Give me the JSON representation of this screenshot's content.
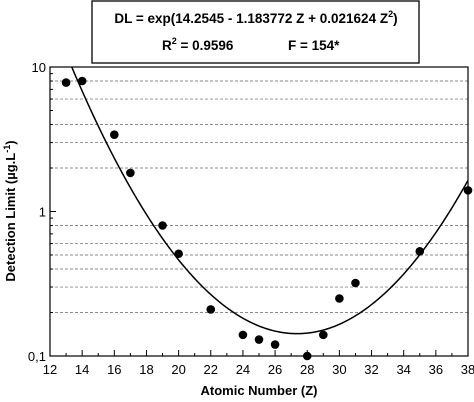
{
  "chart_data": {
    "type": "scatter",
    "xlabel": "Atomic Number (Z)",
    "ylabel_main": "Detection Limit (µg.L",
    "ylabel_sup": "-1",
    "ylabel_end": ")",
    "xlim": [
      12,
      38
    ],
    "ylim": [
      0.1,
      10
    ],
    "y_scale": "log",
    "x_ticks": [
      "12",
      "14",
      "16",
      "18",
      "20",
      "22",
      "24",
      "26",
      "28",
      "30",
      "32",
      "34",
      "36",
      "38"
    ],
    "y_ticks": [
      {
        "value": 0.1,
        "label": "0,1"
      },
      {
        "value": 1,
        "label": "1"
      },
      {
        "value": 10,
        "label": "10"
      }
    ],
    "grid": "horizontal dashed (minor log ticks)",
    "points": [
      {
        "x": 13,
        "y": 7.8
      },
      {
        "x": 14,
        "y": 8.0
      },
      {
        "x": 16,
        "y": 3.4
      },
      {
        "x": 17,
        "y": 1.85
      },
      {
        "x": 19,
        "y": 0.8
      },
      {
        "x": 20,
        "y": 0.51
      },
      {
        "x": 22,
        "y": 0.21
      },
      {
        "x": 24,
        "y": 0.14
      },
      {
        "x": 25,
        "y": 0.13
      },
      {
        "x": 26,
        "y": 0.12
      },
      {
        "x": 28,
        "y": 0.1
      },
      {
        "x": 29,
        "y": 0.14
      },
      {
        "x": 30,
        "y": 0.25
      },
      {
        "x": 31,
        "y": 0.32
      },
      {
        "x": 35,
        "y": 0.53
      },
      {
        "x": 38,
        "y": 1.4
      }
    ],
    "fit": {
      "type": "exp-quadratic",
      "a": 14.2545,
      "b": -1.183772,
      "c": 0.021624
    },
    "annotation": {
      "line1_main": "DL = exp(14.2545 - 1.183772 Z + 0.021624 Z",
      "line1_sup": "2",
      "line1_end": ")",
      "r2_prefix": "R",
      "r2_sup": "2",
      "r2_rest": " = 0.9596",
      "f_text": "F = 154*"
    }
  }
}
